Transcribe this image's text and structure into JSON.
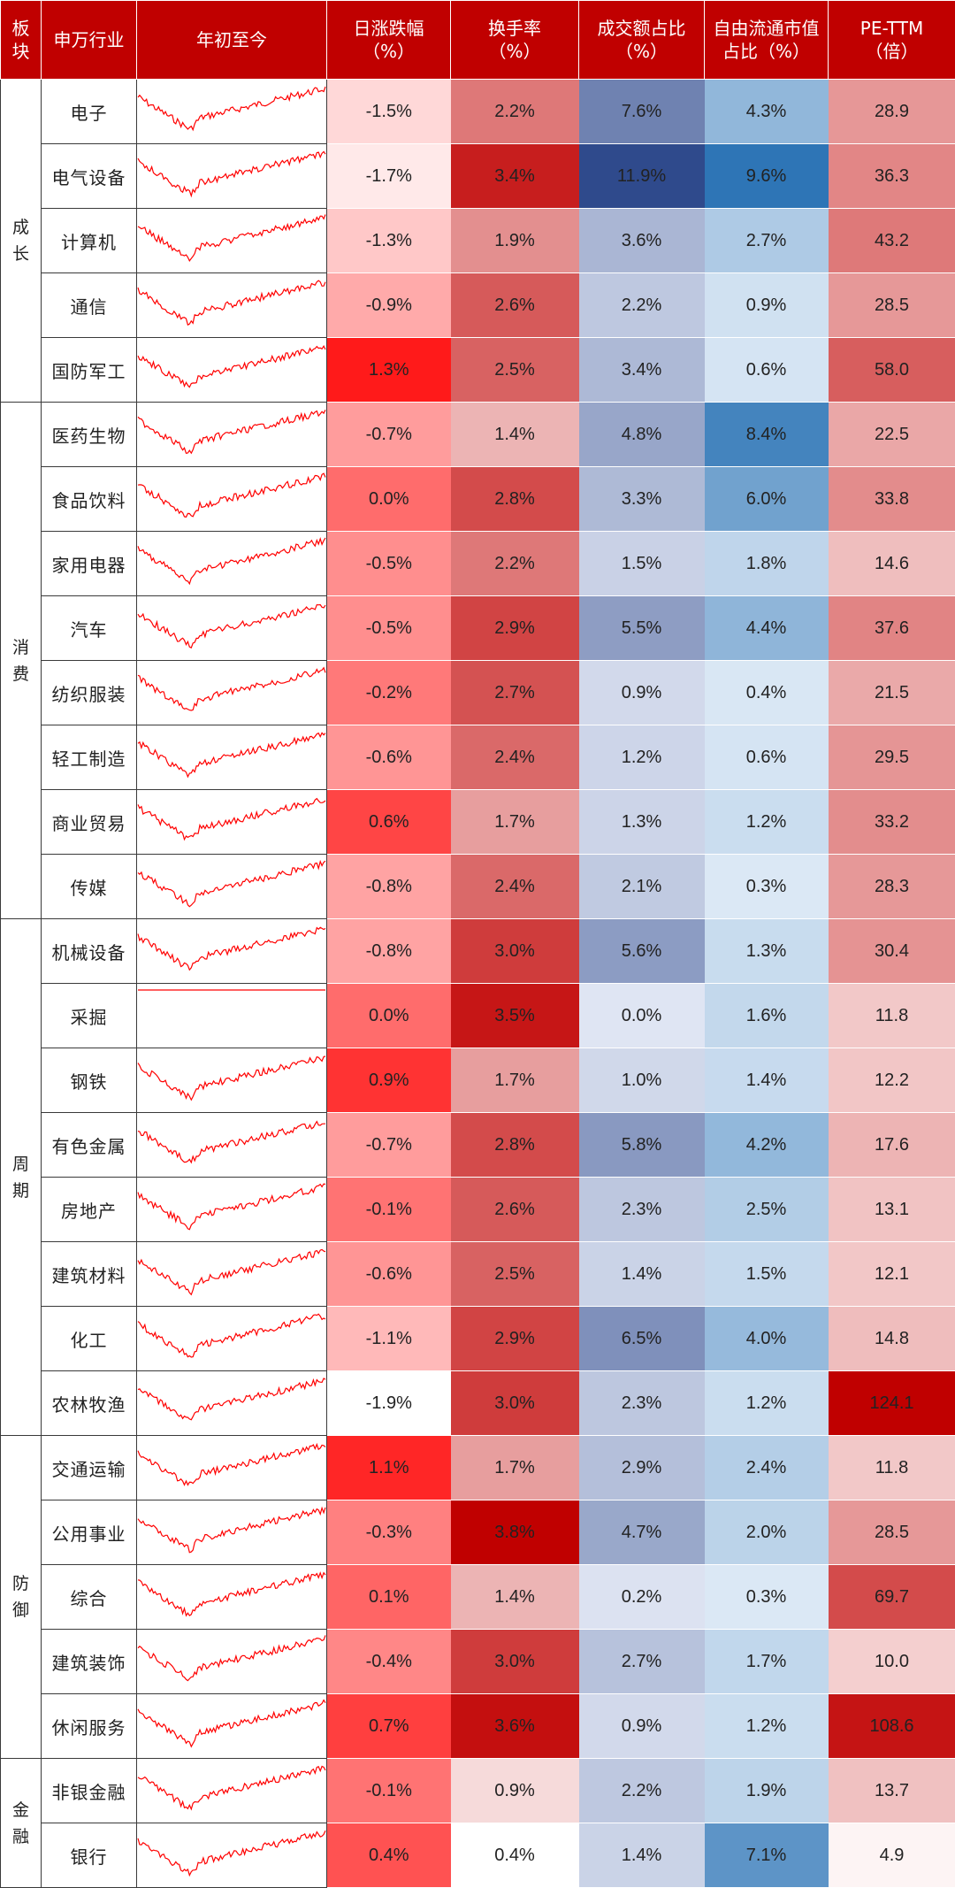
{
  "header": {
    "sector": "板\n块",
    "industry": "申万行业",
    "ytd": "年初至今",
    "daily_change": "日涨跌幅\n（%）",
    "turnover": "换手率\n（%）",
    "volume_share": "成交额占比\n（%）",
    "float_cap_share": "自由流通市值\n占比（%）",
    "pe": "PE-TTM\n（倍）"
  },
  "sectors": [
    {
      "name": "成\n长",
      "rows": 5
    },
    {
      "name": "消\n费",
      "rows": 8
    },
    {
      "name": "周\n期",
      "rows": 8
    },
    {
      "name": "防\n御",
      "rows": 5
    },
    {
      "name": "金\n融",
      "rows": 2
    }
  ],
  "rows": [
    {
      "industry": "电子",
      "daily": "-1.5%",
      "turnover": "2.2%",
      "volume": "7.6%",
      "float": "4.3%",
      "pe": "28.9"
    },
    {
      "industry": "电气设备",
      "daily": "-1.7%",
      "turnover": "3.4%",
      "volume": "11.9%",
      "float": "9.6%",
      "pe": "36.3"
    },
    {
      "industry": "计算机",
      "daily": "-1.3%",
      "turnover": "1.9%",
      "volume": "3.6%",
      "float": "2.7%",
      "pe": "43.2"
    },
    {
      "industry": "通信",
      "daily": "-0.9%",
      "turnover": "2.6%",
      "volume": "2.2%",
      "float": "0.9%",
      "pe": "28.5"
    },
    {
      "industry": "国防军工",
      "daily": "1.3%",
      "turnover": "2.5%",
      "volume": "3.4%",
      "float": "0.6%",
      "pe": "58.0"
    },
    {
      "industry": "医药生物",
      "daily": "-0.7%",
      "turnover": "1.4%",
      "volume": "4.8%",
      "float": "8.4%",
      "pe": "22.5"
    },
    {
      "industry": "食品饮料",
      "daily": "0.0%",
      "turnover": "2.8%",
      "volume": "3.3%",
      "float": "6.0%",
      "pe": "33.8"
    },
    {
      "industry": "家用电器",
      "daily": "-0.5%",
      "turnover": "2.2%",
      "volume": "1.5%",
      "float": "1.8%",
      "pe": "14.6"
    },
    {
      "industry": "汽车",
      "daily": "-0.5%",
      "turnover": "2.9%",
      "volume": "5.5%",
      "float": "4.4%",
      "pe": "37.6"
    },
    {
      "industry": "纺织服装",
      "daily": "-0.2%",
      "turnover": "2.7%",
      "volume": "0.9%",
      "float": "0.4%",
      "pe": "21.5"
    },
    {
      "industry": "轻工制造",
      "daily": "-0.6%",
      "turnover": "2.4%",
      "volume": "1.2%",
      "float": "0.6%",
      "pe": "29.5"
    },
    {
      "industry": "商业贸易",
      "daily": "0.6%",
      "turnover": "1.7%",
      "volume": "1.3%",
      "float": "1.2%",
      "pe": "33.2"
    },
    {
      "industry": "传媒",
      "daily": "-0.8%",
      "turnover": "2.4%",
      "volume": "2.1%",
      "float": "0.3%",
      "pe": "28.3"
    },
    {
      "industry": "机械设备",
      "daily": "-0.8%",
      "turnover": "3.0%",
      "volume": "5.6%",
      "float": "1.3%",
      "pe": "30.4"
    },
    {
      "industry": "采掘",
      "daily": "0.0%",
      "turnover": "3.5%",
      "volume": "0.0%",
      "float": "1.6%",
      "pe": "11.8"
    },
    {
      "industry": "钢铁",
      "daily": "0.9%",
      "turnover": "1.7%",
      "volume": "1.0%",
      "float": "1.4%",
      "pe": "12.2"
    },
    {
      "industry": "有色金属",
      "daily": "-0.7%",
      "turnover": "2.8%",
      "volume": "5.8%",
      "float": "4.2%",
      "pe": "17.6"
    },
    {
      "industry": "房地产",
      "daily": "-0.1%",
      "turnover": "2.6%",
      "volume": "2.3%",
      "float": "2.5%",
      "pe": "13.1"
    },
    {
      "industry": "建筑材料",
      "daily": "-0.6%",
      "turnover": "2.5%",
      "volume": "1.4%",
      "float": "1.5%",
      "pe": "12.1"
    },
    {
      "industry": "化工",
      "daily": "-1.1%",
      "turnover": "2.9%",
      "volume": "6.5%",
      "float": "4.0%",
      "pe": "14.8"
    },
    {
      "industry": "农林牧渔",
      "daily": "-1.9%",
      "turnover": "3.0%",
      "volume": "2.3%",
      "float": "1.2%",
      "pe": "124.1"
    },
    {
      "industry": "交通运输",
      "daily": "1.1%",
      "turnover": "1.7%",
      "volume": "2.9%",
      "float": "2.4%",
      "pe": "11.8"
    },
    {
      "industry": "公用事业",
      "daily": "-0.3%",
      "turnover": "3.8%",
      "volume": "4.7%",
      "float": "2.0%",
      "pe": "28.5"
    },
    {
      "industry": "综合",
      "daily": "0.1%",
      "turnover": "1.4%",
      "volume": "0.2%",
      "float": "0.3%",
      "pe": "69.7"
    },
    {
      "industry": "建筑装饰",
      "daily": "-0.4%",
      "turnover": "3.0%",
      "volume": "2.7%",
      "float": "1.7%",
      "pe": "10.0"
    },
    {
      "industry": "休闲服务",
      "daily": "0.7%",
      "turnover": "3.6%",
      "volume": "0.9%",
      "float": "1.2%",
      "pe": "108.6"
    },
    {
      "industry": "非银金融",
      "daily": "-0.1%",
      "turnover": "0.9%",
      "volume": "2.2%",
      "float": "1.9%",
      "pe": "13.7"
    },
    {
      "industry": "银行",
      "daily": "0.4%",
      "turnover": "0.4%",
      "volume": "1.4%",
      "float": "7.1%",
      "pe": "4.9"
    }
  ],
  "colors": {
    "header_bg": "#c00000",
    "red_max": "#ff0000",
    "dark_red": "#c00000",
    "blue_max": "#2e75b6",
    "navy": "#2f4a8c",
    "sparkline": "#ff0000"
  }
}
